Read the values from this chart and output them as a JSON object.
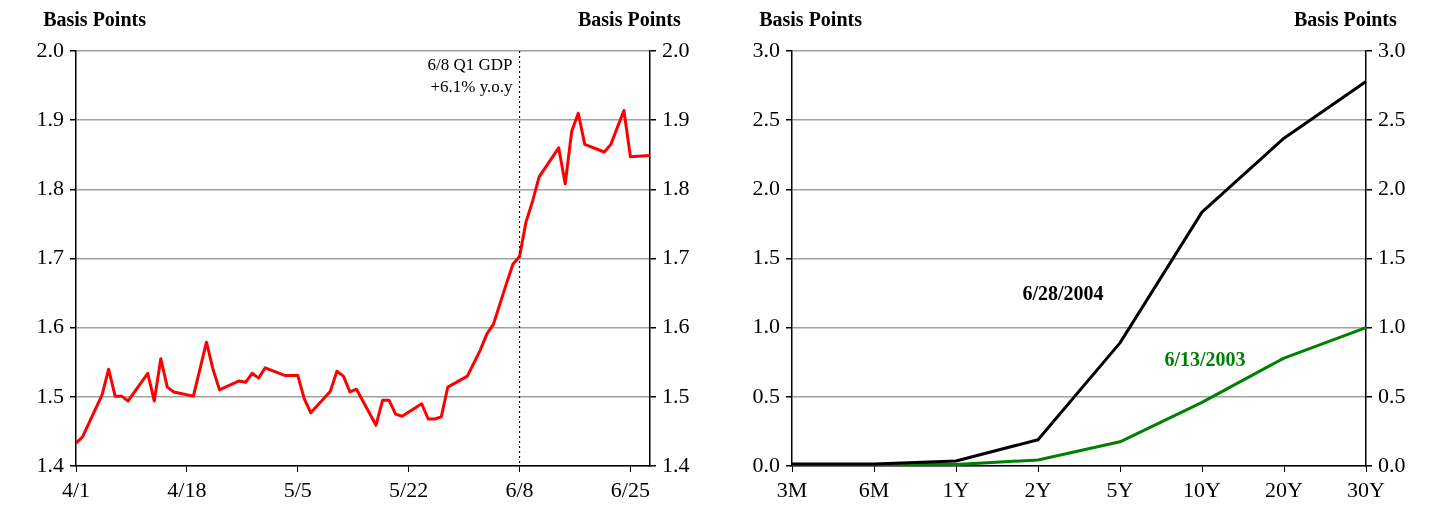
{
  "chart_data": [
    {
      "type": "line",
      "ylabel": "Basis Points",
      "y2label": "Basis Points",
      "grid": "y",
      "legend": false,
      "marker": "none",
      "xlim": [
        "--04-01",
        "--06-28"
      ],
      "xticks": [
        {
          "value": "--04-01",
          "label": "4/1"
        },
        {
          "value": "--04-18",
          "label": "4/18"
        },
        {
          "value": "--05-05",
          "label": "5/5"
        },
        {
          "value": "--05-22",
          "label": "5/22"
        },
        {
          "value": "--06-08",
          "label": "6/8"
        },
        {
          "value": "--06-25",
          "label": "6/25"
        }
      ],
      "ylim": [
        1.4,
        2.0
      ],
      "yticks": [
        1.4,
        1.5,
        1.6,
        1.7,
        1.8,
        1.9,
        {
          "value": 2.0,
          "label": "2.0"
        }
      ],
      "y2lim": [
        1.4,
        2.0
      ],
      "y2ticks": [
        1.4,
        1.5,
        1.6,
        1.7,
        1.8,
        1.9,
        {
          "value": 2.0,
          "label": "2.0"
        }
      ],
      "ref_lines": [
        {
          "axis": "x",
          "value": "--06-08",
          "label": "6/8 Q1 GDP\n+6.1% y.o.y",
          "color": "#000000",
          "line_style": "dotted"
        }
      ],
      "series": [
        {
          "color": "#ff0000",
          "x": [
            "--04-01",
            "--04-02",
            "--04-05",
            "--04-06",
            "--04-07",
            "--04-08",
            "--04-09",
            "--04-12",
            "--04-13",
            "--04-14",
            "--04-15",
            "--04-16",
            "--04-19",
            "--04-21",
            "--04-22",
            "--04-23",
            "--04-26",
            "--04-27",
            "--04-28",
            "--04-29",
            "--04-30",
            "--05-03",
            "--05-05",
            "--05-06",
            "--05-07",
            "--05-10",
            "--05-11",
            "--05-12",
            "--05-13",
            "--05-14",
            "--05-17",
            "--05-18",
            "--05-19",
            "--05-20",
            "--05-21",
            "--05-24",
            "--05-25",
            "--05-26",
            "--05-27",
            "--05-28",
            "--05-31",
            "--06-02",
            "--06-03",
            "--06-04",
            "--06-06",
            "--06-07",
            "--06-08",
            "--06-09",
            "--06-10",
            "--06-11",
            "--06-14",
            "--06-15",
            "--06-16",
            "--06-17",
            "--06-18",
            "--06-21",
            "--06-22",
            "--06-24",
            "--06-25",
            "--06-28"
          ],
          "values": [
            1.433,
            1.442,
            1.503,
            1.54,
            1.501,
            1.501,
            1.494,
            1.534,
            1.494,
            1.555,
            1.514,
            1.507,
            1.501,
            1.579,
            1.54,
            1.51,
            1.523,
            1.521,
            1.534,
            1.527,
            1.542,
            1.531,
            1.531,
            1.497,
            1.477,
            1.508,
            1.537,
            1.53,
            1.507,
            1.511,
            1.459,
            1.495,
            1.495,
            1.475,
            1.472,
            1.49,
            1.468,
            1.468,
            1.471,
            1.514,
            1.53,
            1.568,
            1.591,
            1.605,
            1.664,
            1.692,
            1.703,
            1.753,
            1.783,
            1.818,
            1.86,
            1.808,
            1.884,
            1.91,
            1.865,
            1.854,
            1.865,
            1.914,
            1.847,
            1.849
          ]
        }
      ]
    },
    {
      "type": "line",
      "ylabel": "Basis Points",
      "y2label": "Basis Points",
      "grid": "y",
      "legend": false,
      "marker": "none",
      "categories": [
        "3M",
        "6M",
        "1Y",
        "2Y",
        "5Y",
        "10Y",
        "20Y",
        "30Y"
      ],
      "ylim": [
        0,
        3.0
      ],
      "yticks": [
        {
          "value": 0,
          "label": "0.0"
        },
        0.5,
        {
          "value": 1,
          "label": "1.0"
        },
        1.5,
        {
          "value": 2,
          "label": "2.0"
        },
        2.5,
        {
          "value": 3,
          "label": "3.0"
        }
      ],
      "y2lim": [
        0,
        3.0
      ],
      "y2ticks": [
        {
          "value": 0,
          "label": "0.0"
        },
        0.5,
        {
          "value": 1,
          "label": "1.0"
        },
        1.5,
        {
          "value": 2,
          "label": "2.0"
        },
        2.5,
        {
          "value": 3,
          "label": "3.0"
        }
      ],
      "series": [
        {
          "name": "6/28/2004",
          "color": "#000000",
          "values": [
            0.015,
            0.015,
            0.036,
            0.19,
            0.89,
            1.835,
            2.37,
            2.78
          ]
        },
        {
          "name": "6/13/2003",
          "color": "#008000",
          "values": [
            0.01,
            0.01,
            0.01,
            0.044,
            0.175,
            0.46,
            0.78,
            1.0
          ]
        }
      ]
    }
  ]
}
